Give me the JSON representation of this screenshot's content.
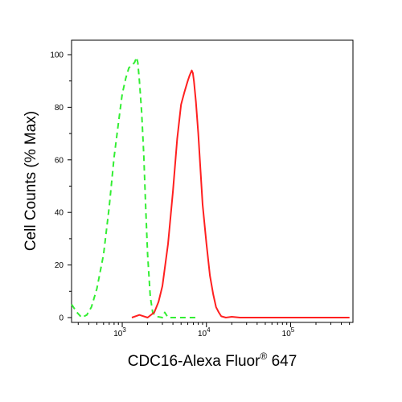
{
  "chart_data": {
    "type": "line",
    "title": "",
    "xlabel": "CDC16-Alexa Fluor",
    "xlabel_superscript": "®",
    "xlabel_suffix": " 647",
    "ylabel": "Cell Counts (% Max)",
    "xscale": "log",
    "xlim": [
      250,
      550000
    ],
    "ylim": [
      0,
      105
    ],
    "x_tick_labels": [
      {
        "base": "10",
        "exp": "3",
        "value": 1000
      },
      {
        "base": "10",
        "exp": "4",
        "value": 10000
      },
      {
        "base": "10",
        "exp": "5",
        "value": 100000
      }
    ],
    "y_ticks": [
      0,
      20,
      40,
      60,
      80,
      100
    ],
    "grid": false,
    "legend": "none",
    "series": [
      {
        "color": "#33ee33",
        "dash": "dashed",
        "x": [
          250,
          290,
          330,
          380,
          430,
          500,
          600,
          700,
          800,
          900,
          1000,
          1100,
          1200,
          1300,
          1400,
          1480,
          1530,
          1600,
          1700,
          1800,
          1900,
          2000,
          2150,
          2300,
          2500,
          3000,
          3200,
          3500,
          4000,
          5000,
          6000,
          7000,
          8000
        ],
        "y": [
          5,
          2,
          0,
          1,
          4,
          11,
          24,
          42,
          61,
          74,
          85,
          91,
          95,
          96,
          97,
          99,
          97,
          90,
          78,
          62,
          42,
          24,
          8,
          2,
          0.5,
          0,
          2,
          0,
          0,
          0,
          0,
          0,
          0
        ]
      },
      {
        "color": "#ff2020",
        "dash": "solid",
        "x": [
          1300,
          1600,
          2000,
          2400,
          2700,
          3000,
          3500,
          4000,
          4500,
          5000,
          5500,
          6000,
          6300,
          6700,
          6900,
          7100,
          7500,
          8000,
          8500,
          9000,
          10000,
          11000,
          12000,
          13000,
          14000,
          15000,
          17000,
          20000,
          25000,
          30000,
          40000,
          50000,
          70000,
          100000,
          150000,
          200000,
          300000,
          400000,
          500000
        ],
        "y": [
          0,
          1,
          0,
          2,
          6,
          12,
          28,
          48,
          68,
          81,
          86,
          90,
          92,
          94,
          93,
          90,
          82,
          70,
          56,
          43,
          28,
          16,
          9,
          4,
          2,
          0.5,
          0,
          0.3,
          0,
          0,
          0,
          0,
          0,
          0,
          0,
          0,
          0,
          0,
          0
        ]
      }
    ]
  }
}
